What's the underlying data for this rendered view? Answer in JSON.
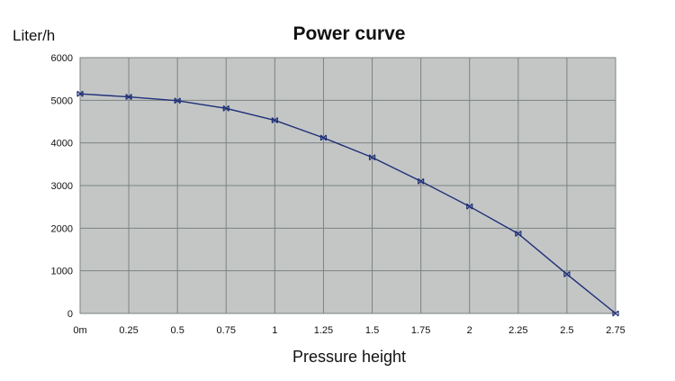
{
  "chart_data": {
    "type": "line",
    "title": "Power curve",
    "xlabel": "Pressure height",
    "ylabel": "Liter/h",
    "x_tick_labels": [
      "0m",
      "0.25",
      "0.5",
      "0.75",
      "1",
      "1.25",
      "1.5",
      "1.75",
      "2",
      "2.25",
      "2.5",
      "2.75"
    ],
    "x": [
      0,
      0.25,
      0.5,
      0.75,
      1,
      1.25,
      1.5,
      1.75,
      2,
      2.25,
      2.5,
      2.75
    ],
    "ylim": [
      0,
      6000
    ],
    "y_ticks": [
      0,
      1000,
      2000,
      3000,
      4000,
      5000,
      6000
    ],
    "grid": true,
    "series": [
      {
        "values": [
          5150,
          5080,
          4990,
          4810,
          4530,
          4120,
          3660,
          3100,
          2510,
          1870,
          920,
          0
        ],
        "color": "#1f2f78"
      }
    ],
    "plot_background": "#c3c6c5",
    "grid_color": "#7e8282"
  }
}
